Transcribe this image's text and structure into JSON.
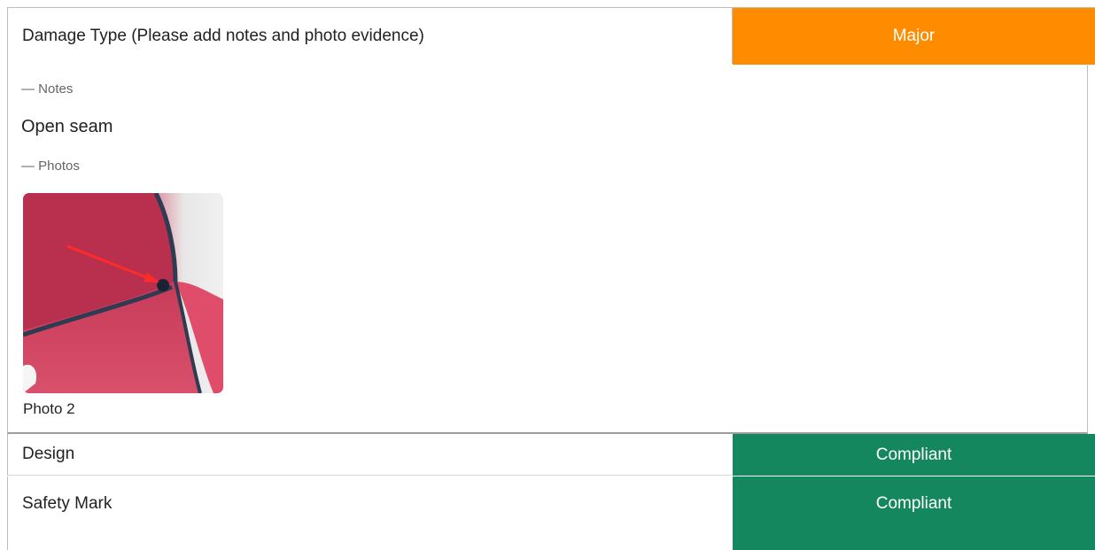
{
  "damage": {
    "label": "Damage Type (Please add notes and photo evidence)",
    "status": "Major",
    "status_color": "#ff8c00",
    "notes_heading": "— Notes",
    "notes_value": "Open seam",
    "photos_heading": "— Photos",
    "photos": [
      {
        "caption": "Photo 2",
        "icon": "damaged-seam-photo"
      }
    ]
  },
  "rows": [
    {
      "label": "Design",
      "status": "Compliant",
      "status_color": "#14875f"
    },
    {
      "label": "Safety Mark",
      "status": "Compliant",
      "status_color": "#14875f"
    }
  ]
}
